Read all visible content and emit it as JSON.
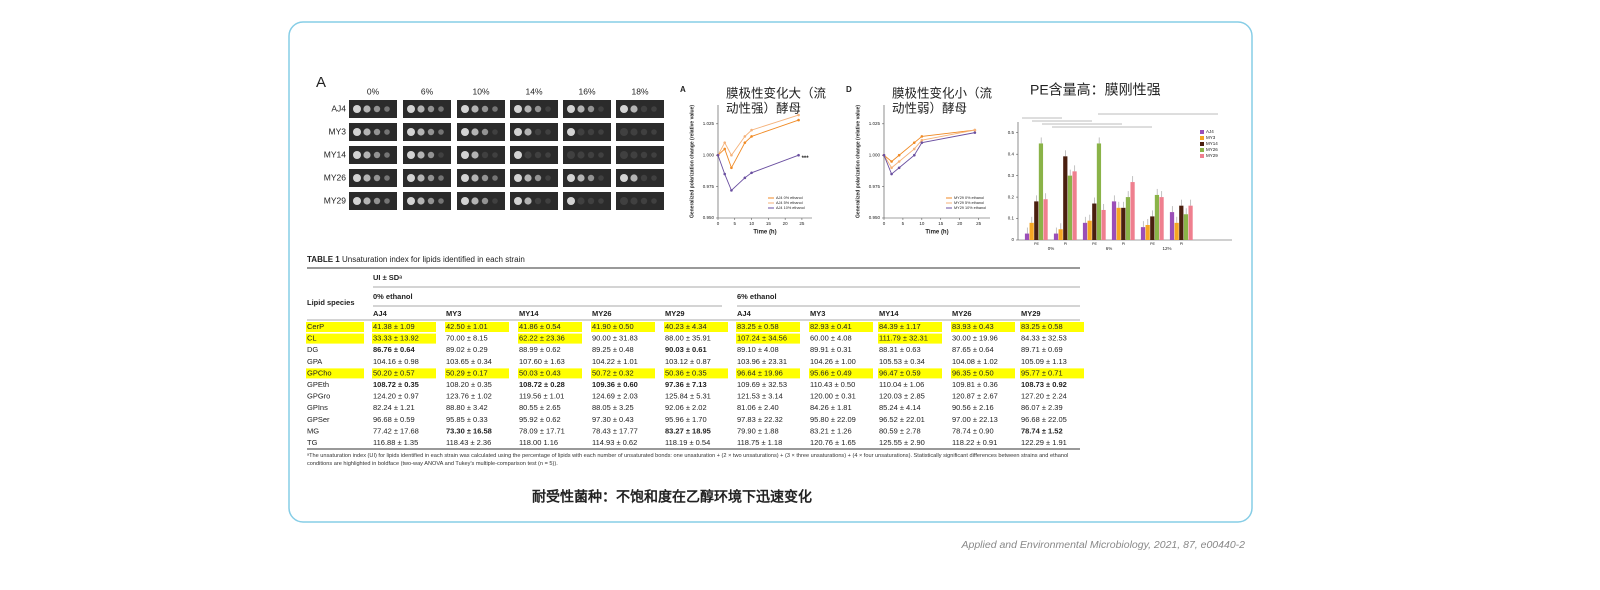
{
  "panel_a": {
    "label": "A",
    "columns": [
      "0%",
      "6%",
      "10%",
      "14%",
      "16%",
      "18%"
    ],
    "rows": [
      "AJ4",
      "MY3",
      "MY14",
      "MY26",
      "MY29"
    ]
  },
  "chart_data": [
    {
      "type": "line",
      "panel": "A",
      "annotation": [
        "膜极性变化大（流",
        "动性强）酵母"
      ],
      "x_label": "Time (h)",
      "y_label": "Generalized polarization change (relative value)",
      "x": [
        0,
        2,
        4,
        8,
        10,
        24
      ],
      "xlim": [
        0,
        28
      ],
      "xticks": [
        0,
        5,
        10,
        15,
        20,
        25
      ],
      "ylim": [
        0.95,
        1.04
      ],
      "yticks": [
        {
          "value": 0.95,
          "label": "0.950"
        },
        0.975,
        {
          "value": 1.0,
          "label": "1.000"
        },
        1.025
      ],
      "marker_note": "***",
      "series": [
        {
          "name": "AJ4 0% ethanol",
          "color": "#f08a24",
          "values": [
            1.0,
            1.005,
            0.99,
            1.01,
            1.015,
            1.028
          ]
        },
        {
          "name": "AJ4 5% ethanol",
          "color": "#f5b27a",
          "values": [
            1.0,
            1.01,
            1.0,
            1.015,
            1.02,
            1.032
          ]
        },
        {
          "name": "AJ4 10% ethanol",
          "color": "#6a4fa0",
          "values": [
            1.0,
            0.985,
            0.972,
            0.982,
            0.986,
            1.0
          ]
        }
      ]
    },
    {
      "type": "line",
      "panel": "D",
      "annotation": [
        "膜极性变化小（流",
        "动性弱）酵母"
      ],
      "x_label": "Time (h)",
      "y_label": "Generalized polarization change (relative value)",
      "x": [
        0,
        2,
        4,
        8,
        10,
        24
      ],
      "xlim": [
        0,
        28
      ],
      "xticks": [
        0,
        5,
        10,
        15,
        20,
        25
      ],
      "ylim": [
        0.95,
        1.04
      ],
      "yticks": [
        {
          "value": 0.95,
          "label": "0.950"
        },
        0.975,
        {
          "value": 1.0,
          "label": "1.000"
        },
        1.025
      ],
      "series": [
        {
          "name": "MY29 0% ethanol",
          "color": "#f08a24",
          "values": [
            1.0,
            0.995,
            1.0,
            1.01,
            1.015,
            1.02
          ]
        },
        {
          "name": "MY29 5% ethanol",
          "color": "#f5b27a",
          "values": [
            1.0,
            0.99,
            0.995,
            1.005,
            1.012,
            1.02
          ]
        },
        {
          "name": "MY29 10% ethanol",
          "color": "#6a4fa0",
          "values": [
            1.0,
            0.985,
            0.99,
            1.0,
            1.01,
            1.018
          ]
        }
      ]
    },
    {
      "type": "bar",
      "title": "PE含量高：膜刚性强",
      "categories": [
        "PE",
        "PI",
        "PE",
        "PI",
        "PE",
        "PI"
      ],
      "groups": [
        "0%",
        "6%",
        "12%"
      ],
      "ylim": [
        0,
        0.55
      ],
      "yticks": [
        0,
        0.1,
        0.2,
        0.3,
        0.4,
        0.5
      ],
      "series": [
        {
          "name": "AJ4",
          "color": "#9b4fb8",
          "values": [
            0.03,
            0.03,
            0.08,
            0.18,
            0.06,
            0.13
          ]
        },
        {
          "name": "MY3",
          "color": "#f5a623",
          "values": [
            0.08,
            0.05,
            0.09,
            0.15,
            0.07,
            0.08
          ]
        },
        {
          "name": "MY14",
          "color": "#4a1f0f",
          "values": [
            0.18,
            0.39,
            0.17,
            0.15,
            0.11,
            0.16
          ]
        },
        {
          "name": "MY26",
          "color": "#8ab348",
          "values": [
            0.45,
            0.3,
            0.45,
            0.2,
            0.21,
            0.12
          ]
        },
        {
          "name": "MY29",
          "color": "#ef7f8f",
          "values": [
            0.19,
            0.32,
            0.14,
            0.27,
            0.2,
            0.16
          ]
        }
      ]
    }
  ],
  "table": {
    "label": "TABLE 1",
    "title": "Unsaturation index for lipids identified in each strain",
    "ui_header": "UI ± SDᵃ",
    "row_header": "Lipid species",
    "groups": [
      "0% ethanol",
      "6% ethanol"
    ],
    "columns": [
      "AJ4",
      "MY3",
      "MY14",
      "MY26",
      "MY29",
      "AJ4",
      "MY3",
      "MY14",
      "MY26",
      "MY29"
    ],
    "rows": [
      [
        "CerP",
        "41.38 ± 1.09",
        "42.50 ± 1.01",
        "41.86 ± 0.54",
        "41.90 ± 0.50",
        "40.23 ± 4.34",
        "83.25 ± 0.58",
        "82.93 ± 0.41",
        "84.39 ± 1.17",
        "83.93 ± 0.43",
        "83.25 ± 0.58"
      ],
      [
        "CL",
        "33.33 ± 13.92",
        "70.00 ± 8.15",
        "62.22 ± 23.36",
        "90.00 ± 31.83",
        "88.00 ± 35.91",
        "107.24 ± 34.56",
        "60.00 ± 4.08",
        "111.79 ± 32.31",
        "30.00 ± 19.96",
        "84.33 ± 32.53"
      ],
      [
        "DG",
        "86.76 ± 0.64",
        "89.02 ± 0.29",
        "88.99 ± 0.62",
        "89.25 ± 0.48",
        "90.03 ± 0.61",
        "89.10 ± 4.08",
        "89.91 ± 0.31",
        "88.31 ± 0.63",
        "87.65 ± 0.64",
        "89.71 ± 0.69"
      ],
      [
        "GPA",
        "104.16 ± 0.98",
        "103.65 ± 0.34",
        "107.60 ± 1.63",
        "104.22 ± 1.01",
        "103.12 ± 0.87",
        "103.96 ± 23.31",
        "104.26 ± 1.00",
        "105.53 ± 0.34",
        "104.08 ± 1.02",
        "105.09 ± 1.13"
      ],
      [
        "GPCho",
        "50.20 ± 0.57",
        "50.29 ± 0.17",
        "50.03 ± 0.43",
        "50.72 ± 0.32",
        "50.36 ± 0.35",
        "96.64 ± 19.96",
        "95.66 ± 0.49",
        "96.47 ± 0.59",
        "96.35 ± 0.50",
        "95.77 ± 0.71"
      ],
      [
        "GPEth",
        "108.72 ± 0.35",
        "108.20 ± 0.35",
        "108.72 ± 0.28",
        "109.36 ± 0.60",
        "97.36 ± 7.13",
        "109.69 ± 32.53",
        "110.43 ± 0.50",
        "110.04 ± 1.06",
        "109.81 ± 0.36",
        "108.73 ± 0.92"
      ],
      [
        "GPGro",
        "124.20 ± 0.97",
        "123.76 ± 1.02",
        "119.56 ± 1.01",
        "124.69 ± 2.03",
        "125.84 ± 5.31",
        "121.53 ± 3.14",
        "120.00 ± 0.31",
        "120.03 ± 2.85",
        "120.87 ± 2.67",
        "127.20 ± 2.24"
      ],
      [
        "GPIns",
        "82.24 ± 1.21",
        "88.80 ± 3.42",
        "80.55 ± 2.65",
        "88.05 ± 3.25",
        "92.06 ± 2.02",
        "81.06 ± 2.40",
        "84.26 ± 1.81",
        "85.24 ± 4.14",
        "90.56 ± 2.16",
        "86.07 ± 2.39"
      ],
      [
        "GPSer",
        "96.68 ± 0.59",
        "95.85 ± 0.33",
        "95.92 ± 0.62",
        "97.30 ± 0.43",
        "95.96 ± 1.70",
        "97.83 ± 22.32",
        "95.80 ± 22.09",
        "96.52 ± 22.01",
        "97.00 ± 22.13",
        "96.68 ± 22.05"
      ],
      [
        "MG",
        "77.42 ± 17.68",
        "73.30 ± 16.58",
        "78.09 ± 17.71",
        "78.43 ± 17.77",
        "83.27 ± 18.95",
        "79.90 ± 1.88",
        "83.21 ± 1.26",
        "80.59 ± 2.78",
        "78.74 ± 0.90",
        "78.74 ± 1.52"
      ],
      [
        "TG",
        "116.88 ± 1.35",
        "118.43 ± 2.36",
        "118.00 1.16",
        "114.93 ± 0.62",
        "118.19 ± 0.54",
        "118.75 ± 1.18",
        "120.76 ± 1.65",
        "125.55 ± 2.90",
        "118.22 ± 0.91",
        "122.29 ± 1.91"
      ]
    ],
    "bold": [
      [
        2,
        1
      ],
      [
        2,
        5
      ],
      [
        5,
        1
      ],
      [
        5,
        3
      ],
      [
        5,
        4
      ],
      [
        5,
        5
      ],
      [
        5,
        10
      ],
      [
        9,
        2
      ],
      [
        9,
        5
      ],
      [
        9,
        10
      ]
    ],
    "highlight": [
      [
        0,
        0
      ],
      [
        0,
        1
      ],
      [
        0,
        2
      ],
      [
        0,
        3
      ],
      [
        0,
        4
      ],
      [
        0,
        5
      ],
      [
        0,
        6
      ],
      [
        0,
        7
      ],
      [
        0,
        8
      ],
      [
        0,
        9
      ],
      [
        0,
        10
      ],
      [
        1,
        0
      ],
      [
        1,
        1
      ],
      [
        1,
        3
      ],
      [
        1,
        6
      ],
      [
        1,
        8
      ],
      [
        4,
        0
      ],
      [
        4,
        1
      ],
      [
        4,
        2
      ],
      [
        4,
        3
      ],
      [
        4,
        4
      ],
      [
        4,
        5
      ],
      [
        4,
        6
      ],
      [
        4,
        7
      ],
      [
        4,
        8
      ],
      [
        4,
        9
      ],
      [
        4,
        10
      ]
    ],
    "highlight_color": "#ffff00",
    "footnote": "ᵃThe unsaturation index (UI) for lipids identified in each strain was calculated using the percentage of lipids with each number of unsaturated bonds: one unsaturation + (2 × two unsaturations) + (3 × three unsaturations) + (4 × four unsaturations). Statistically significant differences between strains and ethanol conditions are highlighted in boldface (two-way ANOVA and Tukey's multiple-comparison test (n = 5))."
  },
  "summary": "耐受性菌种：不饱和度在乙醇环境下迅速变化",
  "citation": "Applied and Environmental Microbiology, 2021, 87, e00440-2"
}
